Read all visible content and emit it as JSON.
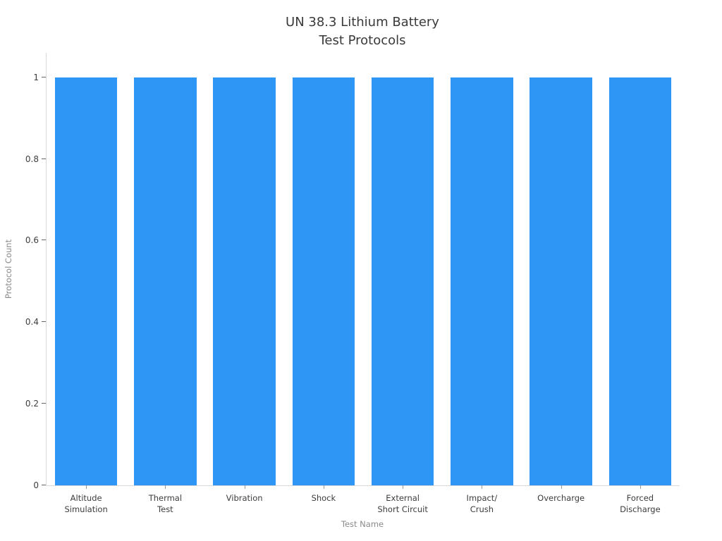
{
  "chart_data": {
    "type": "bar",
    "title": "UN 38.3 Lithium Battery\nTest Protocols",
    "xlabel": "Test Name",
    "ylabel": "Protocol Count",
    "categories": [
      "Altitude\nSimulation",
      "Thermal\nTest",
      "Vibration",
      "Shock",
      "External\nShort Circuit",
      "Impact/\nCrush",
      "Overcharge",
      "Forced\nDischarge"
    ],
    "values": [
      1,
      1,
      1,
      1,
      1,
      1,
      1,
      1
    ],
    "yticks": [
      0,
      0.2,
      0.4,
      0.6,
      0.8,
      1
    ],
    "ytick_labels": [
      "0",
      "0.2",
      "0.4",
      "0.6",
      "0.8",
      "1"
    ],
    "ylim": [
      0,
      1.06
    ],
    "grid": false,
    "legend": "none",
    "bar_color": "#2e96f5",
    "axis_line_color": "#d9d9d9",
    "tick_label_color": "#3d3d3d",
    "axis_title_color": "#8a8a8a",
    "title_color": "#3a3a3a"
  }
}
